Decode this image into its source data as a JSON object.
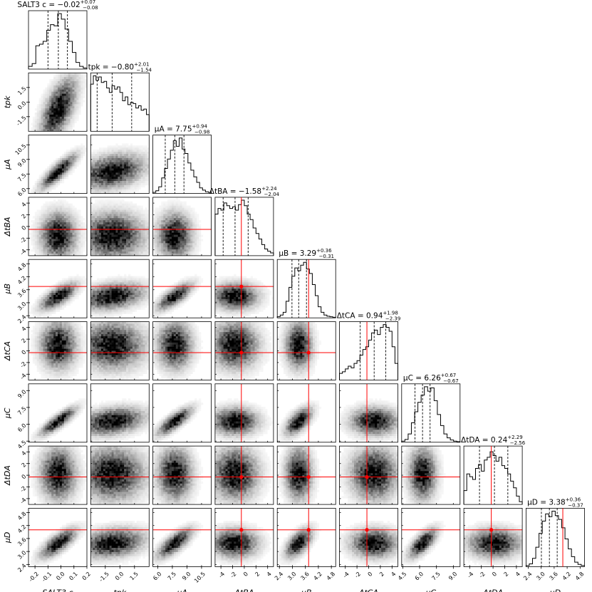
{
  "chart_data": {
    "type": "corner",
    "title": "",
    "parameters": [
      {
        "name": "SALT3 c",
        "label": "SALT3 c",
        "range": [
          -0.25,
          0.2
        ],
        "ticks": [
          -0.2,
          -0.1,
          0.0,
          0.1,
          0.2
        ],
        "tick_labels": [
          "-0.2",
          "-0.1",
          "0.0",
          "0.1",
          "0.2"
        ]
      },
      {
        "name": "t_pk",
        "label": "t_pk",
        "range": [
          -3.0,
          3.0
        ],
        "ticks": [
          -1.5,
          0.0,
          1.5
        ],
        "tick_labels": [
          "-1.5",
          "0.0",
          "1.5"
        ]
      },
      {
        "name": "mu_A",
        "label": "μ_A",
        "range": [
          5.5,
          11.5
        ],
        "ticks": [
          6.0,
          7.5,
          9.0,
          10.5
        ],
        "tick_labels": [
          "6.0",
          "7.5",
          "9.0",
          "10.5"
        ]
      },
      {
        "name": "dt_BA",
        "label": "Δt_BA",
        "range": [
          -5,
          5
        ],
        "ticks": [
          -4,
          -2,
          0,
          2,
          4
        ],
        "tick_labels": [
          "-4",
          "-2",
          "0",
          "2",
          "4"
        ]
      },
      {
        "name": "mu_B",
        "label": "μ_B",
        "range": [
          2.3,
          5.0
        ],
        "ticks": [
          2.4,
          3.0,
          3.6,
          4.2,
          4.8
        ],
        "tick_labels": [
          "2.4",
          "3.0",
          "3.6",
          "4.2",
          "4.8"
        ]
      },
      {
        "name": "dt_CA",
        "label": "Δt_CA",
        "range": [
          -5,
          5
        ],
        "ticks": [
          -4,
          -2,
          0,
          2,
          4
        ],
        "tick_labels": [
          "-4",
          "-2",
          "0",
          "2",
          "4"
        ]
      },
      {
        "name": "mu_C",
        "label": "μ_C",
        "range": [
          4.4,
          9.6
        ],
        "ticks": [
          4.5,
          6.0,
          7.5,
          9.0
        ],
        "tick_labels": [
          "4.5",
          "6.0",
          "7.5",
          "9.0"
        ]
      },
      {
        "name": "dt_DA",
        "label": "Δt_DA",
        "range": [
          -5,
          5
        ],
        "ticks": [
          -4,
          -2,
          0,
          2,
          4
        ],
        "tick_labels": [
          "-4",
          "-2",
          "0",
          "2",
          "4"
        ]
      },
      {
        "name": "mu_D",
        "label": "μ_D",
        "range": [
          2.3,
          5.0
        ],
        "ticks": [
          2.4,
          3.0,
          3.6,
          4.2,
          4.8
        ],
        "tick_labels": [
          "2.4",
          "3.0",
          "3.6",
          "4.2",
          "4.8"
        ]
      }
    ],
    "titles": [
      {
        "parameter": "SALT3 c",
        "prefix": "SALT3 c = ",
        "median": "−0.02",
        "plus": "+0.07",
        "minus": "−0.08"
      },
      {
        "parameter": "t_pk",
        "prefix": "t_pk = ",
        "median": "−0.80",
        "plus": "+2.01",
        "minus": "−1.54"
      },
      {
        "parameter": "mu_A",
        "prefix": "μ_A = ",
        "median": "7.75",
        "plus": "+0.94",
        "minus": "−0.98"
      },
      {
        "parameter": "dt_BA",
        "prefix": "Δt_BA = ",
        "median": "−1.58",
        "plus": "+2.24",
        "minus": "−2.04"
      },
      {
        "parameter": "mu_B",
        "prefix": "μ_B = ",
        "median": "3.29",
        "plus": "+0.36",
        "minus": "−0.31"
      },
      {
        "parameter": "dt_CA",
        "prefix": "Δt_CA = ",
        "median": "0.94",
        "plus": "+1.98",
        "minus": "−2.39"
      },
      {
        "parameter": "mu_C",
        "prefix": "μ_C = ",
        "median": "6.26",
        "plus": "+0.67",
        "minus": "−0.67"
      },
      {
        "parameter": "dt_DA",
        "prefix": "Δt_DA = ",
        "median": "0.24",
        "plus": "+2.29",
        "minus": "−2.56"
      },
      {
        "parameter": "mu_D",
        "prefix": "μ_D = ",
        "median": "3.38",
        "plus": "+0.36",
        "minus": "−0.37"
      }
    ],
    "quantiles": [
      [
        -0.1,
        -0.02,
        0.05
      ],
      [
        -2.34,
        -0.8,
        1.21
      ],
      [
        6.77,
        7.75,
        8.69
      ],
      [
        -3.62,
        -1.58,
        0.66
      ],
      [
        2.98,
        3.29,
        3.65
      ],
      [
        -1.45,
        0.94,
        2.92
      ],
      [
        5.59,
        6.26,
        6.93
      ],
      [
        -2.32,
        0.24,
        2.53
      ],
      [
        3.01,
        3.38,
        3.74
      ]
    ],
    "truths": [
      null,
      null,
      null,
      -0.5,
      3.75,
      -0.3,
      null,
      -0.3,
      4.0
    ],
    "histograms": [
      [
        0.05,
        0.1,
        0.42,
        0.45,
        0.5,
        0.7,
        0.8,
        0.78,
        1.0,
        0.9,
        0.72,
        0.5,
        0.3,
        0.12,
        0.05,
        0.02
      ],
      [
        0.85,
        1.0,
        0.92,
        0.98,
        0.88,
        0.9,
        0.78,
        0.7,
        0.82,
        0.76,
        0.8,
        0.7,
        0.55,
        0.62,
        0.48,
        0.52,
        0.5,
        0.42,
        0.46,
        0.38,
        0.4,
        0.3
      ],
      [
        0.02,
        0.05,
        0.12,
        0.28,
        0.45,
        0.62,
        0.78,
        0.95,
        0.85,
        1.0,
        0.8,
        0.72,
        0.55,
        0.42,
        0.3,
        0.2,
        0.1,
        0.06,
        0.03,
        0.02
      ],
      [
        0.75,
        0.85,
        0.82,
        0.95,
        0.9,
        0.85,
        0.88,
        0.82,
        0.92,
        1.0,
        0.9,
        0.75,
        0.65,
        0.5,
        0.4,
        0.3,
        0.2,
        0.12,
        0.08,
        0.05
      ],
      [
        0.02,
        0.05,
        0.1,
        0.3,
        0.55,
        0.75,
        0.9,
        0.85,
        0.95,
        1.0,
        0.88,
        0.8,
        0.6,
        0.4,
        0.2,
        0.1,
        0.05,
        0.03,
        0.02,
        0.01
      ],
      [
        0.12,
        0.15,
        0.2,
        0.25,
        0.22,
        0.3,
        0.35,
        0.45,
        0.55,
        0.6,
        0.72,
        0.85,
        0.9,
        0.82,
        0.95,
        1.0,
        0.95,
        0.88,
        0.6,
        0.3
      ],
      [
        0.02,
        0.05,
        0.15,
        0.35,
        0.55,
        0.72,
        0.85,
        1.0,
        0.92,
        0.98,
        0.75,
        0.5,
        0.3,
        0.15,
        0.08,
        0.04,
        0.02,
        0.01
      ],
      [
        0.25,
        0.55,
        0.5,
        0.45,
        0.65,
        0.72,
        0.6,
        0.8,
        0.85,
        0.95,
        0.88,
        0.78,
        0.85,
        0.7,
        0.65,
        0.55,
        0.42,
        0.3,
        0.15,
        0.05
      ],
      [
        0.02,
        0.05,
        0.15,
        0.35,
        0.6,
        0.82,
        0.95,
        0.9,
        1.0,
        0.92,
        0.85,
        0.7,
        0.5,
        0.32,
        0.18,
        0.08,
        0.04,
        0.02
      ]
    ],
    "correlations": {
      "1,0": 0.6,
      "2,0": 0.85,
      "4,0": 0.7,
      "6,0": 0.85,
      "8,0": 0.75,
      "2,1": 0.3,
      "4,1": 0.3,
      "6,1": 0.3,
      "8,1": 0.25,
      "4,2": 0.75,
      "6,2": 0.8,
      "8,2": 0.75,
      "6,4": 0.6,
      "8,4": 0.6,
      "8,6": 0.7
    },
    "grid": false,
    "legend": "none"
  }
}
